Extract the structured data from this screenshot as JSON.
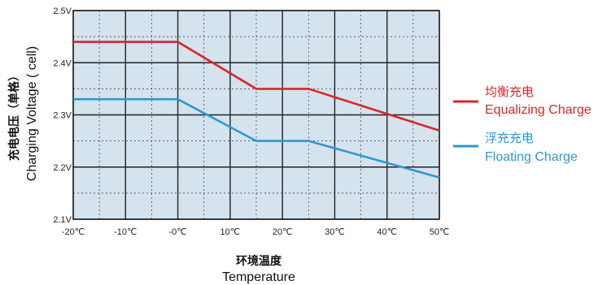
{
  "chart_data": {
    "type": "line",
    "title": "",
    "ylabel_cn": "充电电压（单格）",
    "ylabel": "Charging Voltage ( cell)",
    "xlabel_cn": "环境温度",
    "xlabel": "Temperature",
    "x": [
      -20,
      -10,
      0,
      10,
      20,
      30,
      40,
      50
    ],
    "x_tick_labels": [
      "-20℃",
      "-10℃",
      "-0℃",
      "10℃",
      "20℃",
      "30℃",
      "40℃",
      "50℃"
    ],
    "y_tick_values": [
      2.1,
      2.2,
      2.3,
      2.4,
      2.5
    ],
    "y_tick_labels": [
      "2.1V",
      "2.2V",
      "2.3V",
      "2.4V",
      "2.5V"
    ],
    "xlim": [
      -20,
      50
    ],
    "ylim": [
      2.1,
      2.5
    ],
    "grid": true,
    "background_color": "#d4e3ee",
    "legend_position": "right",
    "series": [
      {
        "name_cn": "均衡充电",
        "name": "Equalizing Charge",
        "color": "#d9262a",
        "points": [
          [
            -20,
            2.44
          ],
          [
            0,
            2.44
          ],
          [
            15,
            2.35
          ],
          [
            25,
            2.35
          ],
          [
            50,
            2.27
          ]
        ]
      },
      {
        "name_cn": "浮充充电",
        "name": "Floating Charge",
        "color": "#2b98d4",
        "points": [
          [
            -20,
            2.33
          ],
          [
            0,
            2.33
          ],
          [
            15,
            2.25
          ],
          [
            25,
            2.25
          ],
          [
            50,
            2.18
          ]
        ]
      }
    ]
  }
}
